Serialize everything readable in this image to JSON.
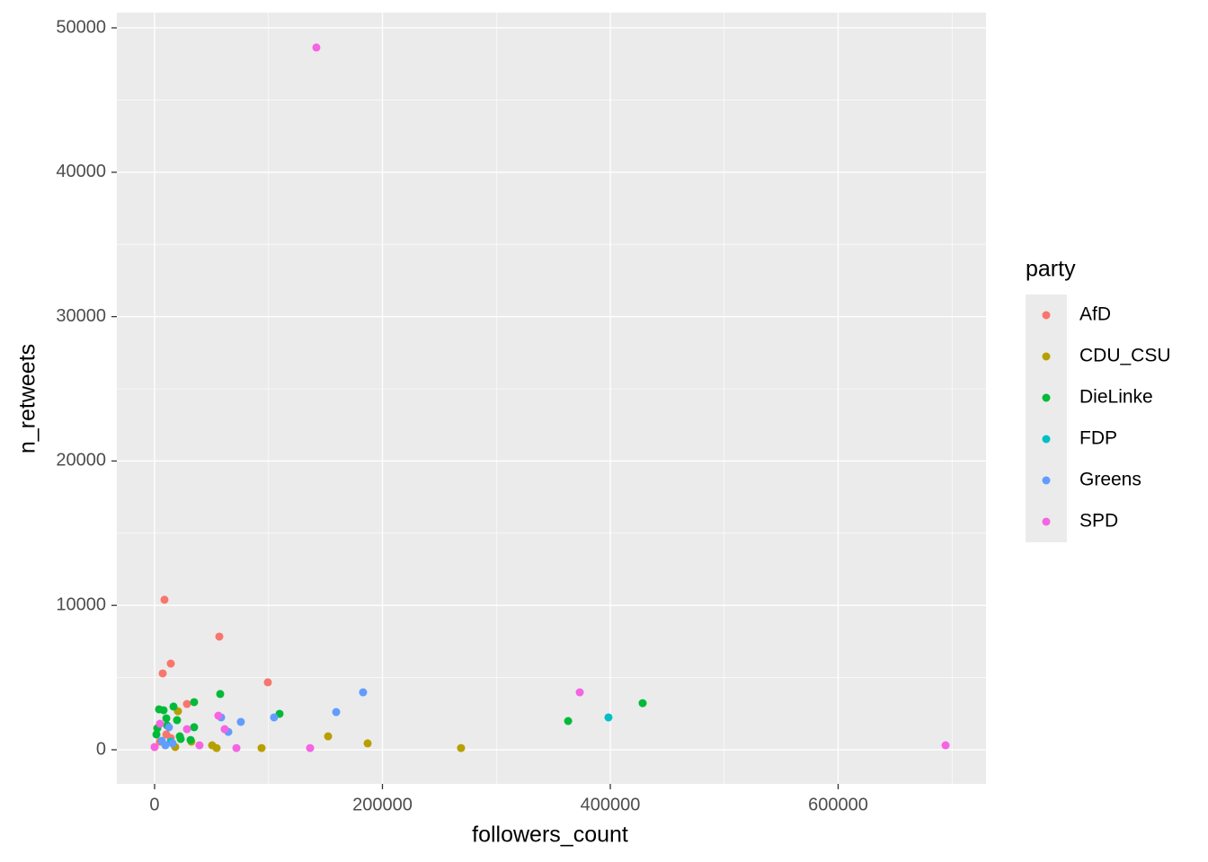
{
  "chart_data": {
    "type": "scatter",
    "x_label": "followers_count",
    "y_label": "n_retweets",
    "legend_title": "party",
    "legend_position": "right",
    "xlim": [
      -33136,
      729783
    ],
    "ylim": [
      -2363,
      51058
    ],
    "xticks": [
      0,
      200000,
      400000,
      600000
    ],
    "yticks": [
      0,
      10000,
      20000,
      30000,
      40000,
      50000
    ],
    "x_minor_ticks": [
      100000,
      300000,
      500000,
      700000
    ],
    "y_minor_ticks": [
      5000,
      15000,
      25000,
      35000,
      45000
    ],
    "grid": true,
    "panel_color": "#EBEBEB",
    "series": [
      {
        "name": "AfD",
        "color": "#F8766D",
        "x": [
          8680,
          56800,
          14200,
          7100,
          99400,
          28400,
          0,
          4700,
          10300,
          14200
        ],
        "values": [
          10390,
          7840,
          5970,
          5290,
          4670,
          3170,
          190,
          560,
          1060,
          810
        ]
      },
      {
        "name": "CDU_CSU",
        "color": "#B79F00",
        "x": [
          152300,
          187000,
          269000,
          93900,
          54400,
          50500,
          20500,
          32300,
          18100
        ],
        "values": [
          930,
          440,
          120,
          120,
          120,
          310,
          2670,
          560,
          190
        ]
      },
      {
        "name": "DieLinke",
        "color": "#00BA38",
        "x": [
          428400,
          363000,
          57600,
          109700,
          34700,
          34700,
          16600,
          3900,
          7900,
          10300,
          19700,
          22100,
          2400,
          1600,
          31600,
          22900,
          11000
        ],
        "values": [
          3230,
          1990,
          3860,
          2490,
          3300,
          1560,
          2990,
          2800,
          2740,
          2180,
          2050,
          930,
          1490,
          1060,
          680,
          750,
          1680
        ]
      },
      {
        "name": "FDP",
        "color": "#00BFC4",
        "x": [
          398400,
          14200
        ],
        "values": [
          2240,
          560
        ]
      },
      {
        "name": "Greens",
        "color": "#619CFF",
        "x": [
          183000,
          159400,
          104900,
          75700,
          64700,
          58400,
          12600,
          6300,
          9500,
          15800
        ],
        "values": [
          3980,
          2610,
          2240,
          1930,
          1240,
          2240,
          1560,
          620,
          310,
          440
        ]
      },
      {
        "name": "SPD",
        "color": "#F564E3",
        "x": [
          142000,
          373200,
          694300,
          56000,
          61500,
          71800,
          136500,
          39400,
          4700,
          0,
          28400
        ],
        "values": [
          48640,
          3980,
          310,
          2360,
          1430,
          120,
          120,
          310,
          1800,
          190,
          1430
        ]
      }
    ]
  }
}
